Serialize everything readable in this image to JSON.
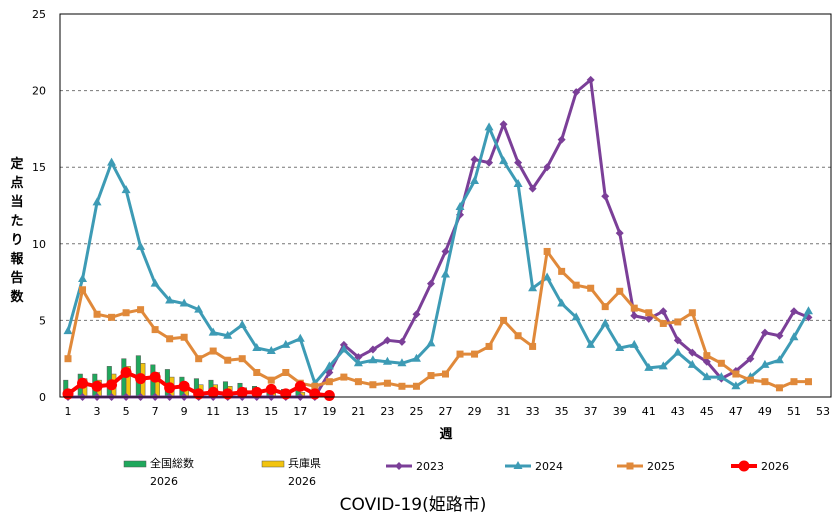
{
  "chart_data": {
    "type": "bar+line",
    "title": "COVID-19(姫路市)",
    "ylabel": "定点当たり報告数",
    "xlabel": "週",
    "ylim": [
      0,
      25
    ],
    "yticks": [
      0,
      5,
      10,
      15,
      20,
      25
    ],
    "xlim": [
      1,
      53
    ],
    "xticks": [
      1,
      3,
      5,
      7,
      9,
      11,
      13,
      15,
      17,
      19,
      21,
      23,
      25,
      27,
      29,
      31,
      33,
      35,
      37,
      39,
      41,
      43,
      45,
      47,
      49,
      51,
      53
    ],
    "grid": true,
    "legend_position": "bottom",
    "bar_series": [
      {
        "name": "全国総数\n2026",
        "color": "#1fa85c",
        "x": [
          1,
          2,
          3,
          4,
          5,
          6,
          7,
          8,
          9,
          10,
          11,
          12,
          13,
          14,
          15,
          16,
          17,
          18,
          19
        ],
        "values": [
          1.1,
          1.5,
          1.5,
          2.0,
          2.5,
          2.7,
          2.1,
          1.8,
          1.3,
          1.2,
          1.1,
          1.0,
          0.9,
          0.7,
          0.5,
          0.5,
          0.4,
          0.3,
          0.2
        ]
      },
      {
        "name": "兵庫県\n2026",
        "color": "#f2c40f",
        "x": [
          1,
          2,
          3,
          4,
          5,
          6,
          7,
          8,
          9,
          10,
          11,
          12,
          13,
          14,
          15,
          16,
          17,
          18,
          19
        ],
        "values": [
          0.5,
          1.2,
          1.1,
          1.5,
          2.0,
          2.2,
          1.6,
          1.3,
          0.9,
          0.8,
          0.8,
          0.7,
          0.6,
          0.5,
          0.4,
          0.4,
          0.3,
          0.3,
          0.2
        ]
      }
    ],
    "line_series": [
      {
        "name": "2023",
        "color": "#7b3f98",
        "marker": "diamond",
        "x": [
          1,
          2,
          3,
          4,
          5,
          6,
          7,
          8,
          9,
          10,
          11,
          12,
          13,
          14,
          15,
          16,
          17,
          18,
          19,
          20,
          21,
          22,
          23,
          24,
          25,
          26,
          27,
          28,
          29,
          30,
          31,
          32,
          33,
          34,
          35,
          36,
          37,
          38,
          39,
          40,
          41,
          42,
          43,
          44,
          45,
          46,
          47,
          48,
          49,
          50,
          51,
          52
        ],
        "values": [
          0,
          0,
          0,
          0,
          0,
          0,
          0,
          0,
          0,
          0,
          0,
          0,
          0,
          0,
          0,
          0,
          0,
          0,
          1.6,
          3.4,
          2.6,
          3.1,
          3.7,
          3.6,
          5.4,
          7.4,
          9.5,
          11.9,
          15.5,
          15.3,
          17.8,
          15.3,
          13.6,
          15.0,
          16.8,
          19.9,
          20.7,
          13.1,
          10.7,
          5.3,
          5.1,
          5.6,
          3.7,
          2.9,
          2.3,
          1.2,
          1.7,
          2.5,
          4.2,
          4.0,
          5.6,
          5.2
        ]
      },
      {
        "name": "2024",
        "color": "#3d9bb5",
        "marker": "triangle",
        "x": [
          1,
          2,
          3,
          4,
          5,
          6,
          7,
          8,
          9,
          10,
          11,
          12,
          13,
          14,
          15,
          16,
          17,
          18,
          19,
          20,
          21,
          22,
          23,
          24,
          25,
          26,
          27,
          28,
          29,
          30,
          31,
          32,
          33,
          34,
          35,
          36,
          37,
          38,
          39,
          40,
          41,
          42,
          43,
          44,
          45,
          46,
          47,
          48,
          49,
          50,
          51,
          52
        ],
        "values": [
          4.3,
          7.7,
          12.7,
          15.3,
          13.5,
          9.8,
          7.4,
          6.3,
          6.1,
          5.7,
          4.2,
          4.0,
          4.7,
          3.2,
          3.0,
          3.4,
          3.8,
          0.9,
          2.0,
          3.1,
          2.2,
          2.4,
          2.3,
          2.2,
          2.5,
          3.5,
          8.0,
          12.4,
          14.1,
          17.6,
          15.4,
          13.9,
          7.1,
          7.8,
          6.1,
          5.2,
          3.4,
          4.8,
          3.2,
          3.4,
          1.9,
          2.0,
          2.9,
          2.1,
          1.3,
          1.3,
          0.7,
          1.3,
          2.1,
          2.4,
          3.9,
          5.6
        ]
      },
      {
        "name": "2025",
        "color": "#e0893a",
        "marker": "square",
        "x": [
          1,
          2,
          3,
          4,
          5,
          6,
          7,
          8,
          9,
          10,
          11,
          12,
          13,
          14,
          15,
          16,
          17,
          18,
          19,
          20,
          21,
          22,
          23,
          24,
          25,
          26,
          27,
          28,
          29,
          30,
          31,
          32,
          33,
          34,
          35,
          36,
          37,
          38,
          39,
          40,
          41,
          42,
          43,
          44,
          45,
          46,
          47,
          48,
          49,
          50,
          51,
          52
        ],
        "values": [
          2.5,
          7.0,
          5.4,
          5.2,
          5.5,
          5.7,
          4.4,
          3.8,
          3.9,
          2.5,
          3.0,
          2.4,
          2.5,
          1.6,
          1.1,
          1.6,
          0.9,
          0.7,
          1.0,
          1.3,
          1.0,
          0.8,
          0.9,
          0.7,
          0.7,
          1.4,
          1.5,
          2.8,
          2.8,
          3.3,
          5.0,
          4.0,
          3.3,
          9.5,
          8.2,
          7.3,
          7.1,
          5.9,
          6.9,
          5.8,
          5.5,
          4.8,
          4.9,
          5.5,
          2.7,
          2.2,
          1.5,
          1.1,
          1.0,
          0.6,
          1.0,
          1.0
        ]
      },
      {
        "name": "2026",
        "color": "#ff0000",
        "marker": "circle",
        "x": [
          1,
          2,
          3,
          4,
          5,
          6,
          7,
          8,
          9,
          10,
          11,
          12,
          13,
          14,
          15,
          16,
          17,
          18,
          19
        ],
        "values": [
          0.2,
          0.9,
          0.7,
          0.8,
          1.6,
          1.2,
          1.3,
          0.6,
          0.7,
          0.2,
          0.3,
          0.2,
          0.3,
          0.3,
          0.5,
          0.2,
          0.7,
          0.2,
          0.1
        ]
      }
    ]
  }
}
